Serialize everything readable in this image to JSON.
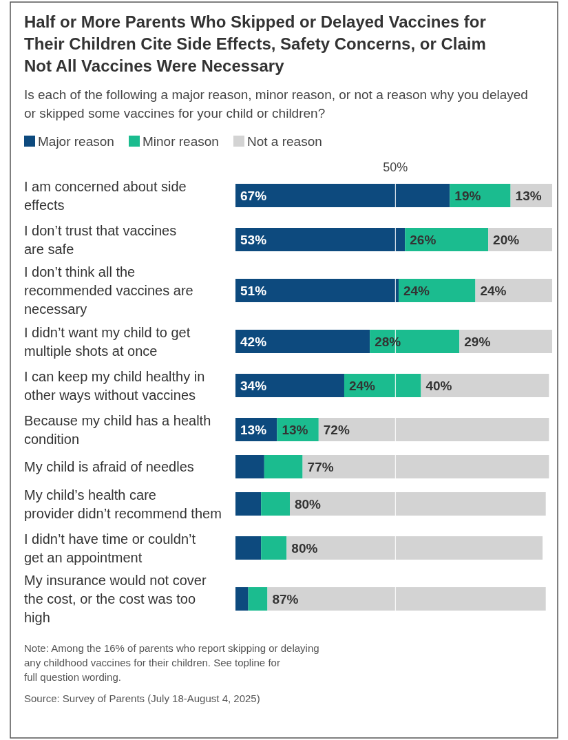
{
  "chart_data": {
    "type": "bar",
    "orientation": "horizontal",
    "stacked": true,
    "title": "Half or More Parents Who Skipped or Delayed Vaccines for Their Children Cite Side Effects, Safety Concerns, or Claim Not All Vaccines Were Necessary",
    "subtitle": "Is each of the following a major reason, minor reason, or not a reason why you delayed or skipped some vaccines for your child or children?",
    "categories": [
      "I am concerned about side effects",
      "I don’t trust that vaccines are safe",
      "I don’t think all the recommended vaccines are necessary",
      "I didn’t want my child to get multiple shots at once",
      "I can keep my child healthy in other ways without vaccines",
      "Because my child has a health condition",
      "My child is afraid of needles",
      "My child’s health care provider didn’t recommend them",
      "I didn’t have time or couldn’t get an appointment",
      "My insurance would not cover the cost, or the cost was too high"
    ],
    "series": [
      {
        "name": "Major reason",
        "color": "#0d4a7e",
        "values": [
          67,
          53,
          51,
          42,
          34,
          13,
          9,
          8,
          8,
          4
        ],
        "value_labels": [
          "67%",
          "53%",
          "51%",
          "42%",
          "34%",
          "13%",
          null,
          null,
          null,
          null
        ]
      },
      {
        "name": "Minor reason",
        "color": "#1bbc8f",
        "values": [
          19,
          26,
          24,
          28,
          24,
          13,
          12,
          9,
          8,
          6
        ],
        "value_labels": [
          "19%",
          "26%",
          "24%",
          "28%",
          "24%",
          "13%",
          null,
          null,
          null,
          null
        ]
      },
      {
        "name": "Not a reason",
        "color": "#d3d3d3",
        "values": [
          13,
          20,
          24,
          29,
          40,
          72,
          77,
          80,
          80,
          87
        ],
        "value_labels": [
          "13%",
          "20%",
          "24%",
          "29%",
          "40%",
          "72%",
          "77%",
          "80%",
          "80%",
          "87%"
        ]
      }
    ],
    "ref_lines": [
      {
        "axis": "x",
        "value": 50,
        "label": "50%",
        "color": "#ffffff"
      }
    ],
    "legend": "top left",
    "annotations": [
      "Note: Among the 16% of parents who report skipping or delaying any childhood vaccines for their children. See topline for full question wording.",
      "Source: Survey of Parents (July 18-August 4, 2025)"
    ]
  }
}
